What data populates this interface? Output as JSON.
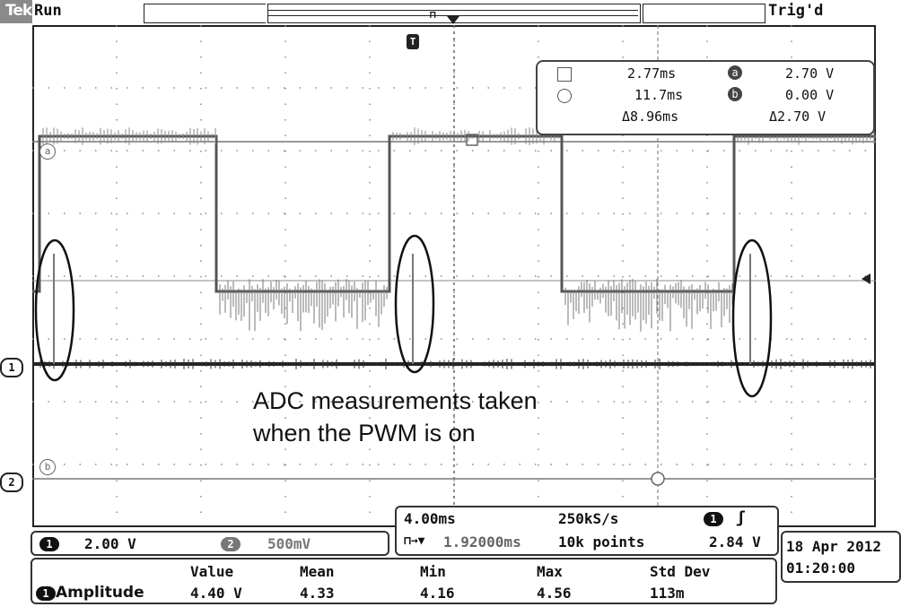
{
  "header": {
    "brand": "Tek",
    "run_state": "Run",
    "trigger_state": "Trig'd"
  },
  "cursors": {
    "time_a": "2.77ms",
    "time_b": "11.7ms",
    "time_delta": "Δ8.96ms",
    "level_a_label": "a",
    "level_a": "2.70 V",
    "level_b_label": "b",
    "level_b": "0.00 V",
    "level_delta": "Δ2.70 V"
  },
  "markers": {
    "cursor_a": "a",
    "cursor_b": "b",
    "ch1": "1",
    "ch2": "2",
    "trigger_pos": "T"
  },
  "annotation": {
    "line1": "ADC measurements taken",
    "line2": "when the PWM is on"
  },
  "channels": {
    "ch1_badge": "1",
    "ch1_scale": "2.00 V",
    "ch2_badge": "2",
    "ch2_scale": "500mV"
  },
  "timebase": {
    "scale": "4.00ms",
    "sample_rate": "250kS/s",
    "trigger_badge": "1",
    "slope_icon": "rising-edge",
    "position": "1.92000ms",
    "record_length": "10k points",
    "trigger_level": "2.84 V"
  },
  "datetime": {
    "date": "18 Apr 2012",
    "time": "01:20:00"
  },
  "measurements": {
    "headers": [
      "Value",
      "Mean",
      "Min",
      "Max",
      "Std Dev"
    ],
    "rows": [
      {
        "badge": "1",
        "name": "Amplitude",
        "value": "4.40 V",
        "mean": "4.33",
        "min": "4.16",
        "max": "4.56",
        "std": "113m"
      }
    ]
  },
  "colors": {
    "trace": "#555555",
    "grid": "#8a8a8a",
    "frame": "#222222"
  }
}
